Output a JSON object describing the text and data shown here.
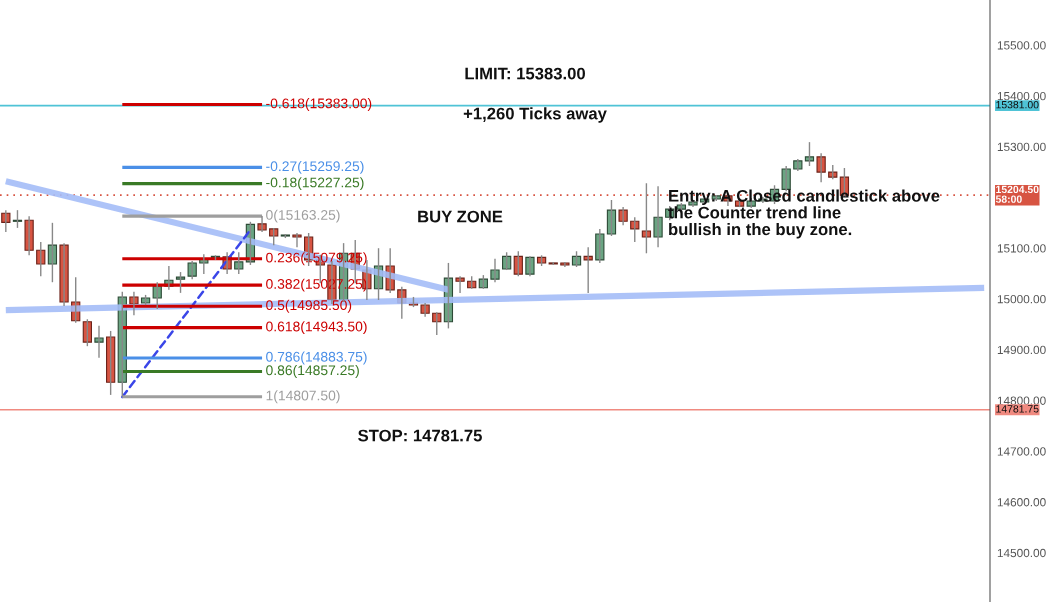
{
  "chart_data": {
    "type": "candlestick",
    "categories": [
      null,
      null,
      null,
      null,
      null,
      null,
      null,
      null,
      null,
      null,
      null,
      null,
      null,
      null,
      null,
      null,
      null,
      null,
      null,
      null,
      null,
      null,
      null,
      null,
      null,
      null,
      null,
      null,
      null,
      null,
      null,
      null,
      null,
      null,
      null,
      null,
      null,
      null,
      null,
      null,
      null,
      null,
      null,
      null,
      null,
      null,
      null,
      null,
      null,
      null,
      null,
      null,
      null,
      null,
      null,
      null,
      null,
      null,
      null,
      null,
      null,
      null,
      null,
      null,
      null,
      null,
      null,
      null,
      null,
      null,
      null,
      null,
      null,
      null,
      null,
      null,
      null,
      null,
      null,
      null,
      null,
      null,
      null,
      null,
      null
    ],
    "ohlc": [
      [
        15169,
        15175,
        15132,
        15151
      ],
      [
        15153,
        15175,
        15140,
        15155
      ],
      [
        15155,
        15163,
        15086,
        15096
      ],
      [
        15096,
        15112,
        15045,
        15069
      ],
      [
        15069,
        15150,
        15033,
        15106
      ],
      [
        15106,
        15110,
        14986,
        14994
      ],
      [
        14994,
        15043,
        14953,
        14957
      ],
      [
        14955,
        14960,
        14907,
        14915
      ],
      [
        14915,
        14947,
        14884,
        14923
      ],
      [
        14925,
        14937,
        14811,
        14836
      ],
      [
        14836,
        15014,
        14807.5,
        15004
      ],
      [
        15004,
        15014,
        14968,
        14990
      ],
      [
        14992,
        15008,
        14988,
        15002
      ],
      [
        15002,
        15033,
        14980,
        15025
      ],
      [
        15025,
        15065,
        15018,
        15037
      ],
      [
        15039,
        15053,
        15012,
        15043
      ],
      [
        15045,
        15075,
        15039,
        15071
      ],
      [
        15071,
        15088,
        15049,
        15079
      ],
      [
        15082,
        15086,
        15077,
        15084
      ],
      [
        15083,
        15092,
        15049,
        15059
      ],
      [
        15059,
        15092,
        15049,
        15073
      ],
      [
        15073,
        15152,
        15067,
        15147
      ],
      [
        15148,
        15163.25,
        15132,
        15136
      ],
      [
        15138,
        15140,
        15106,
        15124
      ],
      [
        15124,
        15128,
        15120,
        15126
      ],
      [
        15126,
        15130,
        15102,
        15122
      ],
      [
        15122,
        15130,
        15065,
        15077
      ],
      [
        15077,
        15087,
        15031,
        15067
      ],
      [
        15067,
        15075,
        14990,
        14998
      ],
      [
        14998,
        15110,
        14994,
        15090
      ],
      [
        15090,
        15116,
        15031,
        15059
      ],
      [
        15057,
        15077,
        14998,
        15020
      ],
      [
        15020,
        15100,
        14998,
        15065
      ],
      [
        15065,
        15100,
        15012,
        15018
      ],
      [
        15018,
        15024,
        14961,
        14992
      ],
      [
        14992,
        15004,
        14984,
        14988
      ],
      [
        14988,
        14992,
        14965,
        14972
      ],
      [
        14972,
        14974,
        14929,
        14955
      ],
      [
        14955,
        15071,
        14942,
        15041
      ],
      [
        15041,
        15045,
        15012,
        15035
      ],
      [
        15035,
        15045,
        15020,
        15022
      ],
      [
        15022,
        15047,
        15020,
        15039
      ],
      [
        15039,
        15079,
        15033,
        15057
      ],
      [
        15059,
        15092,
        15057,
        15084
      ],
      [
        15084,
        15094,
        15045,
        15049
      ],
      [
        15049,
        15084,
        15045,
        15082
      ],
      [
        15082,
        15086,
        15065,
        15071
      ],
      [
        15071,
        15073,
        15067,
        15069
      ],
      [
        15071,
        15073,
        15063,
        15067
      ],
      [
        15067,
        15094,
        15063,
        15084
      ],
      [
        15084,
        15102,
        15012,
        15077
      ],
      [
        15077,
        15138,
        15071,
        15128
      ],
      [
        15128,
        15195,
        15124,
        15175
      ],
      [
        15175,
        15181,
        15145,
        15153
      ],
      [
        15153,
        15161,
        15112,
        15138
      ],
      [
        15134,
        15228,
        15090,
        15122
      ],
      [
        15122,
        15222,
        15102,
        15161
      ],
      [
        15161,
        15183,
        15155,
        15177
      ],
      [
        15177,
        15189,
        15175,
        15185
      ],
      [
        15185,
        15193,
        15181,
        15191
      ],
      [
        15191,
        15199,
        15187,
        15197
      ],
      [
        15197,
        15205,
        15193,
        15203
      ],
      [
        15203,
        15207,
        15183,
        15193
      ],
      [
        15193,
        15199,
        15181,
        15183
      ],
      [
        15183,
        15199,
        15179,
        15193
      ],
      [
        15193,
        15201,
        15189,
        15197
      ],
      [
        15193,
        15224,
        15187,
        15216
      ],
      [
        15216,
        15262,
        15212,
        15256
      ],
      [
        15256,
        15276,
        15252,
        15272
      ],
      [
        15272,
        15309,
        15262,
        15280
      ],
      [
        15280,
        15287,
        15230,
        15250
      ],
      [
        15250,
        15264,
        15236,
        15240
      ],
      [
        15240,
        15258,
        15201,
        15204.5
      ],
      null,
      null,
      null,
      null,
      null,
      null,
      null,
      null,
      null,
      null,
      null,
      null
    ],
    "colors": [
      "#d75442",
      "#6ba583",
      "#d75442",
      "#d75442",
      "#6ba583",
      "#d75442",
      "#d75442",
      "#d75442",
      "#6ba583",
      "#d75442",
      "#6ba583",
      "#d75442",
      "#6ba583",
      "#6ba583",
      "#6ba583",
      "#6ba583",
      "#6ba583",
      "#6ba583",
      "#6ba583",
      "#d75442",
      "#6ba583",
      "#6ba583",
      "#d75442",
      "#d75442",
      "#6ba583",
      "#d75442",
      "#d75442",
      "#d75442",
      "#d75442",
      "#6ba583",
      "#d75442",
      "#d75442",
      "#6ba583",
      "#d75442",
      "#d75442",
      "#d75442",
      "#d75442",
      "#d75442",
      "#6ba583",
      "#d75442",
      "#d75442",
      "#6ba583",
      "#6ba583",
      "#6ba583",
      "#d75442",
      "#6ba583",
      "#d75442",
      "#d75442",
      "#d75442",
      "#6ba583",
      "#d75442",
      "#6ba583",
      "#6ba583",
      "#d75442",
      "#d75442",
      "#d75442",
      "#6ba583",
      "#6ba583",
      "#6ba583",
      "#6ba583",
      "#6ba583",
      "#6ba583",
      "#d75442",
      "#d75442",
      "#6ba583",
      "#6ba583",
      "#6ba583",
      "#6ba583",
      "#6ba583",
      "#6ba583",
      "#d75442",
      "#d75442",
      "#d75442",
      null,
      null,
      null,
      null,
      null,
      null,
      null,
      null,
      null,
      null,
      null,
      null
    ],
    "series": [
      {
        "type": "line",
        "values": [
          15232,
          null,
          null,
          null,
          null,
          null,
          null,
          null,
          null,
          null,
          null,
          null,
          null,
          null,
          null,
          null,
          null,
          null,
          null,
          null,
          null,
          null,
          null,
          null,
          null,
          null,
          null,
          null,
          null,
          null,
          null,
          null,
          null,
          null,
          null,
          null,
          null,
          null,
          15018,
          null,
          null,
          null,
          null,
          null,
          null,
          null,
          null,
          null,
          null,
          null,
          null,
          null,
          null,
          null,
          null,
          null,
          null,
          null,
          null,
          null,
          null,
          null,
          null,
          null,
          null,
          null,
          null,
          null,
          null,
          null,
          null,
          null,
          null,
          null,
          null,
          null,
          null,
          null,
          null,
          null,
          null,
          null,
          null,
          null,
          null
        ],
        "color": "#a4bdf7"
      },
      {
        "type": "line",
        "values": [
          14978,
          null,
          null,
          null,
          null,
          null,
          null,
          null,
          null,
          null,
          null,
          null,
          null,
          null,
          null,
          null,
          null,
          null,
          null,
          null,
          null,
          null,
          null,
          null,
          null,
          null,
          null,
          null,
          null,
          null,
          null,
          null,
          null,
          null,
          null,
          null,
          null,
          null,
          null,
          null,
          null,
          null,
          null,
          null,
          null,
          null,
          null,
          null,
          null,
          null,
          null,
          null,
          null,
          null,
          null,
          null,
          null,
          null,
          null,
          null,
          null,
          null,
          null,
          null,
          null,
          null,
          null,
          null,
          null,
          null,
          null,
          null,
          null,
          null,
          null,
          null,
          null,
          null,
          null,
          null,
          null,
          null,
          null,
          null,
          15022
        ],
        "color": "#a4bdf7"
      },
      {
        "type": "line",
        "values": [
          null,
          null,
          null,
          null,
          null,
          null,
          null,
          null,
          null,
          null,
          14807,
          null,
          null,
          null,
          null,
          null,
          null,
          null,
          null,
          null,
          null,
          15136,
          null,
          null,
          null,
          null,
          null,
          null,
          null,
          null,
          null,
          null,
          null,
          null,
          null,
          null,
          null,
          null,
          null,
          null,
          null,
          null,
          null,
          null,
          null,
          null,
          null,
          null,
          null,
          null,
          null,
          null,
          null,
          null,
          null,
          null,
          null,
          null,
          null,
          null,
          null,
          null,
          null,
          null,
          null,
          null,
          null,
          null,
          null,
          null,
          null,
          null,
          null,
          null,
          null,
          null,
          null,
          null,
          null,
          null,
          null,
          null,
          null,
          null,
          null
        ],
        "color": "#3a46e8",
        "line_style": "dashed"
      },
      {
        "type": "line",
        "name": "-0.618(15383.00)",
        "values": [
          null,
          null,
          null,
          null,
          null,
          null,
          null,
          null,
          null,
          null,
          15383,
          null,
          null,
          null,
          null,
          null,
          null,
          null,
          null,
          null,
          null,
          null,
          15383,
          null,
          null,
          null,
          null,
          null,
          null,
          null,
          null,
          null,
          null,
          null,
          null,
          null,
          null,
          null,
          null,
          null,
          null,
          null,
          null,
          null,
          null,
          null,
          null,
          null,
          null,
          null,
          null,
          null,
          null,
          null,
          null,
          null,
          null,
          null,
          null,
          null,
          null,
          null,
          null,
          null,
          null,
          null,
          null,
          null,
          null,
          null,
          null,
          null,
          null,
          null,
          null,
          null,
          null,
          null,
          null,
          null,
          null,
          null,
          null,
          null,
          null
        ],
        "color": "#cc0000"
      },
      {
        "type": "line",
        "name": "-0.27(15259.25)",
        "values": [
          null,
          null,
          null,
          null,
          null,
          null,
          null,
          null,
          null,
          null,
          15259.25,
          null,
          null,
          null,
          null,
          null,
          null,
          null,
          null,
          null,
          null,
          null,
          15259.25,
          null,
          null,
          null,
          null,
          null,
          null,
          null,
          null,
          null,
          null,
          null,
          null,
          null,
          null,
          null,
          null,
          null,
          null,
          null,
          null,
          null,
          null,
          null,
          null,
          null,
          null,
          null,
          null,
          null,
          null,
          null,
          null,
          null,
          null,
          null,
          null,
          null,
          null,
          null,
          null,
          null,
          null,
          null,
          null,
          null,
          null,
          null,
          null,
          null,
          null,
          null,
          null,
          null,
          null,
          null,
          null,
          null,
          null,
          null,
          null,
          null,
          null
        ],
        "color": "#4a8fe7"
      },
      {
        "type": "line",
        "name": "-0.18(15227.25)",
        "values": [
          null,
          null,
          null,
          null,
          null,
          null,
          null,
          null,
          null,
          null,
          15227.25,
          null,
          null,
          null,
          null,
          null,
          null,
          null,
          null,
          null,
          null,
          null,
          15227.25,
          null,
          null,
          null,
          null,
          null,
          null,
          null,
          null,
          null,
          null,
          null,
          null,
          null,
          null,
          null,
          null,
          null,
          null,
          null,
          null,
          null,
          null,
          null,
          null,
          null,
          null,
          null,
          null,
          null,
          null,
          null,
          null,
          null,
          null,
          null,
          null,
          null,
          null,
          null,
          null,
          null,
          null,
          null,
          null,
          null,
          null,
          null,
          null,
          null,
          null,
          null,
          null,
          null,
          null,
          null,
          null,
          null,
          null,
          null,
          null,
          null,
          null
        ],
        "color": "#3a7a26"
      },
      {
        "type": "line",
        "name": "0(15163.25)",
        "values": [
          null,
          null,
          null,
          null,
          null,
          null,
          null,
          null,
          null,
          null,
          15163.25,
          null,
          null,
          null,
          null,
          null,
          null,
          null,
          null,
          null,
          null,
          null,
          15163.25,
          null,
          null,
          null,
          null,
          null,
          null,
          null,
          null,
          null,
          null,
          null,
          null,
          null,
          null,
          null,
          null,
          null,
          null,
          null,
          null,
          null,
          null,
          null,
          null,
          null,
          null,
          null,
          null,
          null,
          null,
          null,
          null,
          null,
          null,
          null,
          null,
          null,
          null,
          null,
          null,
          null,
          null,
          null,
          null,
          null,
          null,
          null,
          null,
          null,
          null,
          null,
          null,
          null,
          null,
          null,
          null,
          null,
          null,
          null,
          null,
          null,
          null
        ],
        "color": "#9e9e9e"
      },
      {
        "type": "line",
        "name": "0.236(15079.25)",
        "values": [
          null,
          null,
          null,
          null,
          null,
          null,
          null,
          null,
          null,
          null,
          15079.25,
          null,
          null,
          null,
          null,
          null,
          null,
          null,
          null,
          null,
          null,
          null,
          15079.25,
          null,
          null,
          null,
          null,
          null,
          null,
          null,
          null,
          null,
          null,
          null,
          null,
          null,
          null,
          null,
          null,
          null,
          null,
          null,
          null,
          null,
          null,
          null,
          null,
          null,
          null,
          null,
          null,
          null,
          null,
          null,
          null,
          null,
          null,
          null,
          null,
          null,
          null,
          null,
          null,
          null,
          null,
          null,
          null,
          null,
          null,
          null,
          null,
          null,
          null,
          null,
          null,
          null,
          null,
          null,
          null,
          null,
          null,
          null,
          null,
          null,
          null
        ],
        "color": "#cc0000"
      },
      {
        "type": "line",
        "name": "0.382(15027.25)",
        "values": [
          null,
          null,
          null,
          null,
          null,
          null,
          null,
          null,
          null,
          null,
          15027.25,
          null,
          null,
          null,
          null,
          null,
          null,
          null,
          null,
          null,
          null,
          null,
          15027.25,
          null,
          null,
          null,
          null,
          null,
          null,
          null,
          null,
          null,
          null,
          null,
          null,
          null,
          null,
          null,
          null,
          null,
          null,
          null,
          null,
          null,
          null,
          null,
          null,
          null,
          null,
          null,
          null,
          null,
          null,
          null,
          null,
          null,
          null,
          null,
          null,
          null,
          null,
          null,
          null,
          null,
          null,
          null,
          null,
          null,
          null,
          null,
          null,
          null,
          null,
          null,
          null,
          null,
          null,
          null,
          null,
          null,
          null,
          null,
          null,
          null,
          null
        ],
        "color": "#cc0000"
      },
      {
        "type": "line",
        "name": "0.5(14985.50)",
        "values": [
          null,
          null,
          null,
          null,
          null,
          null,
          null,
          null,
          null,
          null,
          14985.5,
          null,
          null,
          null,
          null,
          null,
          null,
          null,
          null,
          null,
          null,
          null,
          14985.5,
          null,
          null,
          null,
          null,
          null,
          null,
          null,
          null,
          null,
          null,
          null,
          null,
          null,
          null,
          null,
          null,
          null,
          null,
          null,
          null,
          null,
          null,
          null,
          null,
          null,
          null,
          null,
          null,
          null,
          null,
          null,
          null,
          null,
          null,
          null,
          null,
          null,
          null,
          null,
          null,
          null,
          null,
          null,
          null,
          null,
          null,
          null,
          null,
          null,
          null,
          null,
          null,
          null,
          null,
          null,
          null,
          null,
          null,
          null,
          null,
          null,
          null
        ],
        "color": "#cc0000"
      },
      {
        "type": "line",
        "name": "0.618(14943.50)",
        "values": [
          null,
          null,
          null,
          null,
          null,
          null,
          null,
          null,
          null,
          null,
          14943.5,
          null,
          null,
          null,
          null,
          null,
          null,
          null,
          null,
          null,
          null,
          null,
          14943.5,
          null,
          null,
          null,
          null,
          null,
          null,
          null,
          null,
          null,
          null,
          null,
          null,
          null,
          null,
          null,
          null,
          null,
          null,
          null,
          null,
          null,
          null,
          null,
          null,
          null,
          null,
          null,
          null,
          null,
          null,
          null,
          null,
          null,
          null,
          null,
          null,
          null,
          null,
          null,
          null,
          null,
          null,
          null,
          null,
          null,
          null,
          null,
          null,
          null,
          null,
          null,
          null,
          null,
          null,
          null,
          null,
          null,
          null,
          null,
          null,
          null,
          null
        ],
        "color": "#cc0000"
      },
      {
        "type": "line",
        "name": "0.786(14883.75)",
        "values": [
          null,
          null,
          null,
          null,
          null,
          null,
          null,
          null,
          null,
          null,
          14883.75,
          null,
          null,
          null,
          null,
          null,
          null,
          null,
          null,
          null,
          null,
          null,
          14883.75,
          null,
          null,
          null,
          null,
          null,
          null,
          null,
          null,
          null,
          null,
          null,
          null,
          null,
          null,
          null,
          null,
          null,
          null,
          null,
          null,
          null,
          null,
          null,
          null,
          null,
          null,
          null,
          null,
          null,
          null,
          null,
          null,
          null,
          null,
          null,
          null,
          null,
          null,
          null,
          null,
          null,
          null,
          null,
          null,
          null,
          null,
          null,
          null,
          null,
          null,
          null,
          null,
          null,
          null,
          null,
          null,
          null,
          null,
          null,
          null,
          null,
          null
        ],
        "color": "#4a8fe7"
      },
      {
        "type": "line",
        "name": "0.86(14857.25)",
        "values": [
          null,
          null,
          null,
          null,
          null,
          null,
          null,
          null,
          null,
          null,
          14857.25,
          null,
          null,
          null,
          null,
          null,
          null,
          null,
          null,
          null,
          null,
          null,
          14857.25,
          null,
          null,
          null,
          null,
          null,
          null,
          null,
          null,
          null,
          null,
          null,
          null,
          null,
          null,
          null,
          null,
          null,
          null,
          null,
          null,
          null,
          null,
          null,
          null,
          null,
          null,
          null,
          null,
          null,
          null,
          null,
          null,
          null,
          null,
          null,
          null,
          null,
          null,
          null,
          null,
          null,
          null,
          null,
          null,
          null,
          null,
          null,
          null,
          null,
          null,
          null,
          null,
          null,
          null,
          null,
          null,
          null,
          null,
          null,
          null,
          null,
          null
        ],
        "color": "#3a7a26"
      },
      {
        "type": "line",
        "name": "1(14807.50)",
        "values": [
          null,
          null,
          null,
          null,
          null,
          null,
          null,
          null,
          null,
          null,
          14807.5,
          null,
          null,
          null,
          null,
          null,
          null,
          null,
          null,
          null,
          null,
          null,
          14807.5,
          null,
          null,
          null,
          null,
          null,
          null,
          null,
          null,
          null,
          null,
          null,
          null,
          null,
          null,
          null,
          null,
          null,
          null,
          null,
          null,
          null,
          null,
          null,
          null,
          null,
          null,
          null,
          null,
          null,
          null,
          null,
          null,
          null,
          null,
          null,
          null,
          null,
          null,
          null,
          null,
          null,
          null,
          null,
          null,
          null,
          null,
          null,
          null,
          null,
          null,
          null,
          null,
          null,
          null,
          null,
          null,
          null,
          null,
          null,
          null,
          null,
          null
        ],
        "color": "#9e9e9e"
      }
    ],
    "ref_lines": [
      {
        "axis": "y",
        "value": 15381,
        "label": "15381.00",
        "color": "#4fc3d6"
      },
      {
        "axis": "y",
        "value": 14781.75,
        "label": "14781.75",
        "color": "#f08a80"
      },
      {
        "axis": "y",
        "value": 15204.5,
        "label": "15204.50\n58:00",
        "color": "#d75442",
        "line_style": "dotted"
      }
    ],
    "annotations": [
      "LIMIT: 15383.00",
      "+1,260 Ticks away",
      "BUY ZONE",
      "STOP: 14781.75",
      "Entry: A Closed candlestick above\nthe Counter trend line\nbullish in the buy zone."
    ],
    "ylim": [
      14403,
      15589
    ],
    "yticks": [
      {
        "value": 14500,
        "label": "14500.00"
      },
      {
        "value": 14600,
        "label": "14600.00"
      },
      {
        "value": 14700,
        "label": "14700.00"
      },
      {
        "value": 14800,
        "label": "14800.00"
      },
      {
        "value": 14900,
        "label": "14900.00"
      },
      {
        "value": 15000,
        "label": "15000.00"
      },
      {
        "value": 15100,
        "label": "15100.00"
      },
      {
        "value": 15300,
        "label": "15300.00"
      },
      {
        "value": 15400,
        "label": "15400.00"
      },
      {
        "value": 15500,
        "label": "15500.00"
      }
    ],
    "tick_labels": "y",
    "grid": false
  }
}
